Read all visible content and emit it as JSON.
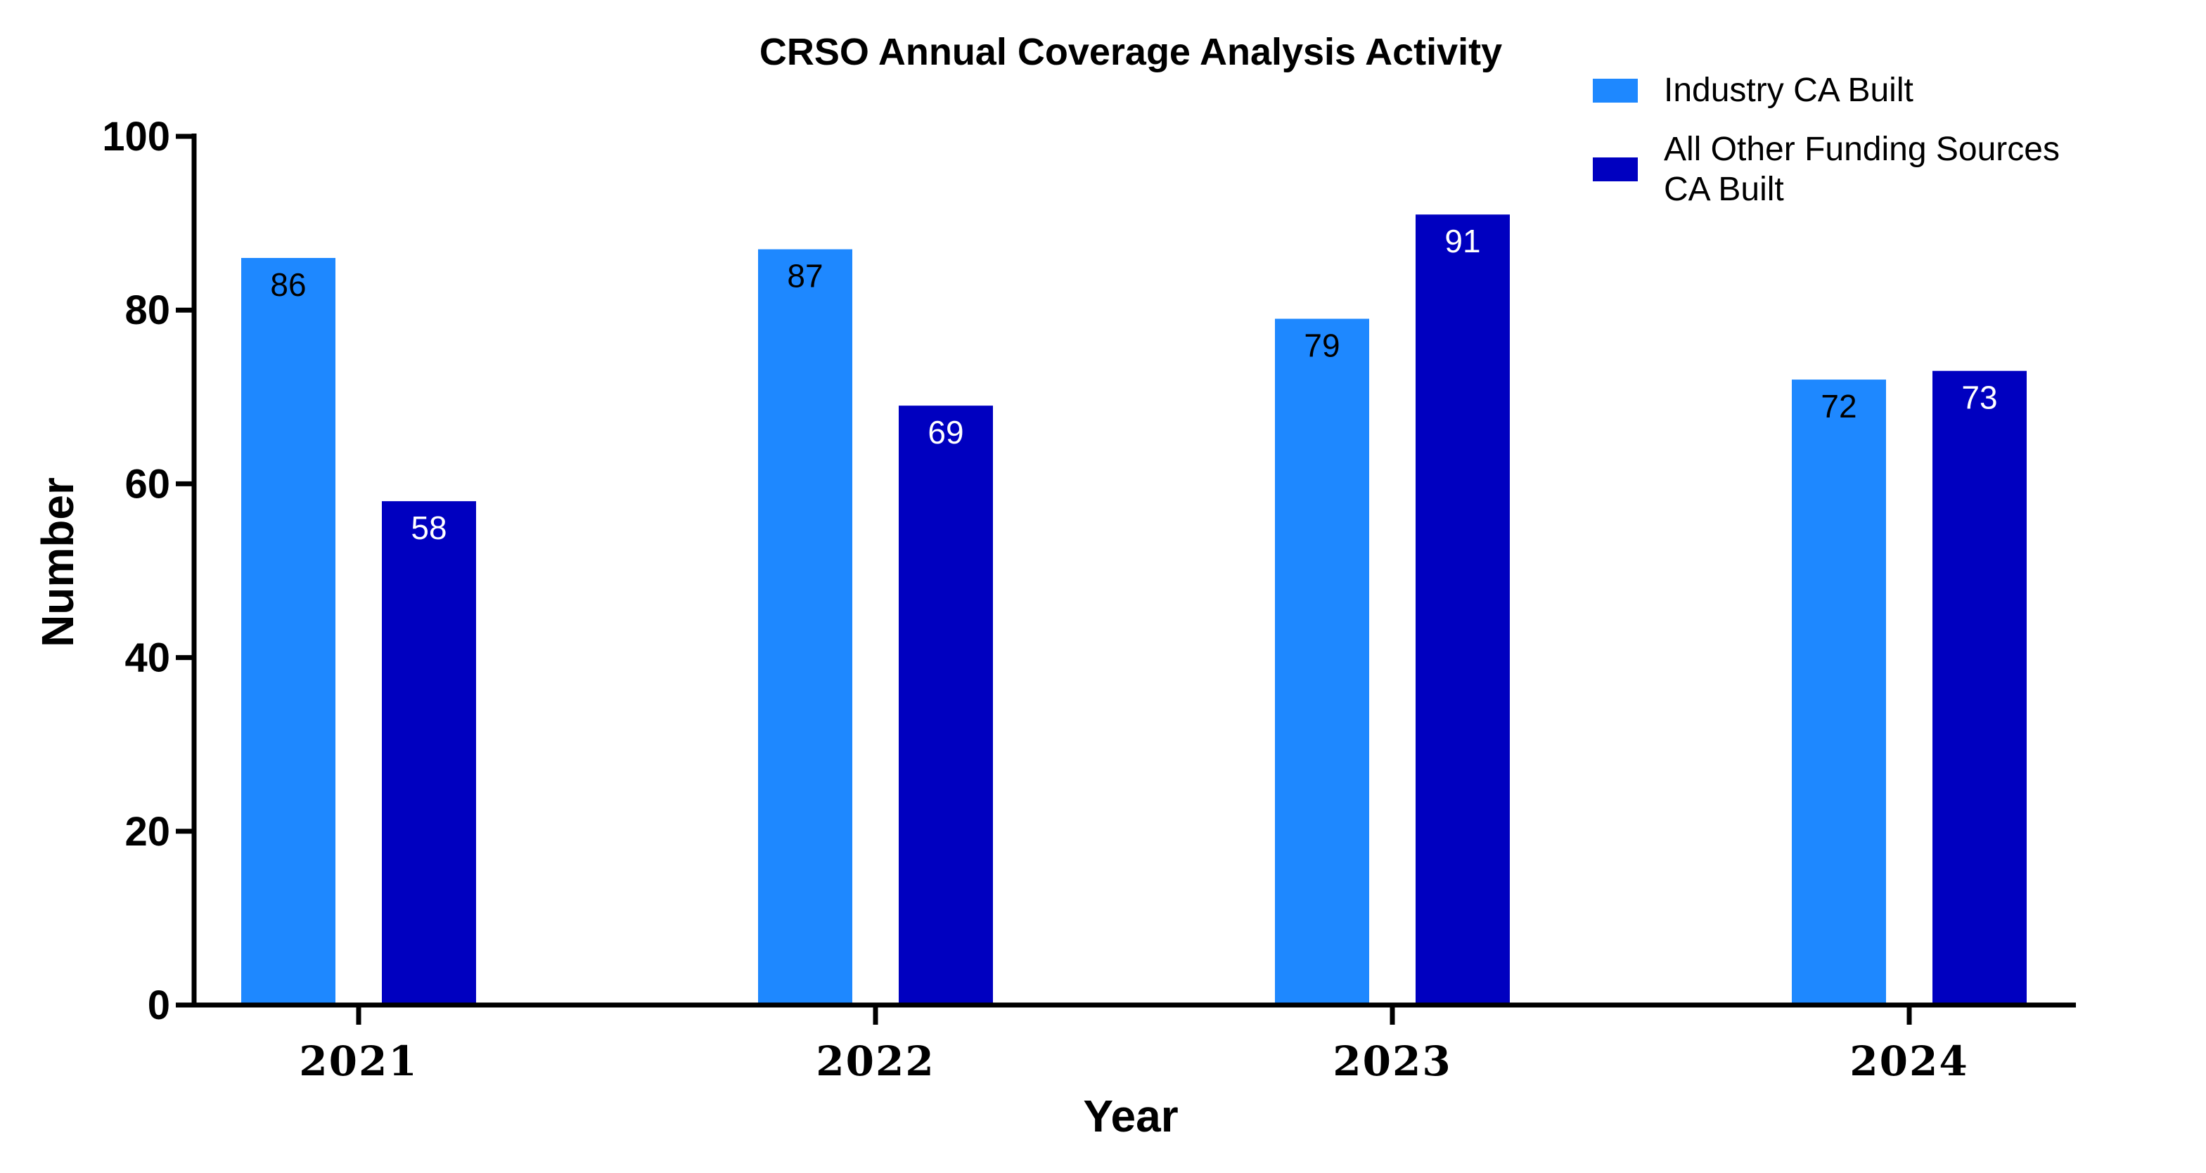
{
  "chart_data": {
    "type": "bar",
    "title": "CRSO Annual Coverage Analysis Activity",
    "xlabel": "Year",
    "ylabel": "Number",
    "categories": [
      "2021",
      "2022",
      "2023",
      "2024"
    ],
    "ylim": [
      0,
      100
    ],
    "yticks": [
      "0",
      "20",
      "40",
      "60",
      "80",
      "100"
    ],
    "grid": false,
    "legend_position": "top-right",
    "series": [
      {
        "name": "Industry CA Built",
        "color": "#1E88FF",
        "label_color": "#000000",
        "values": [
          86,
          87,
          79,
          72
        ]
      },
      {
        "name_lines": [
          "All Other Funding Sources",
          "CA Built"
        ],
        "color": "#0000C0",
        "label_color": "#ffffff",
        "values": [
          58,
          69,
          91,
          73
        ]
      }
    ]
  }
}
